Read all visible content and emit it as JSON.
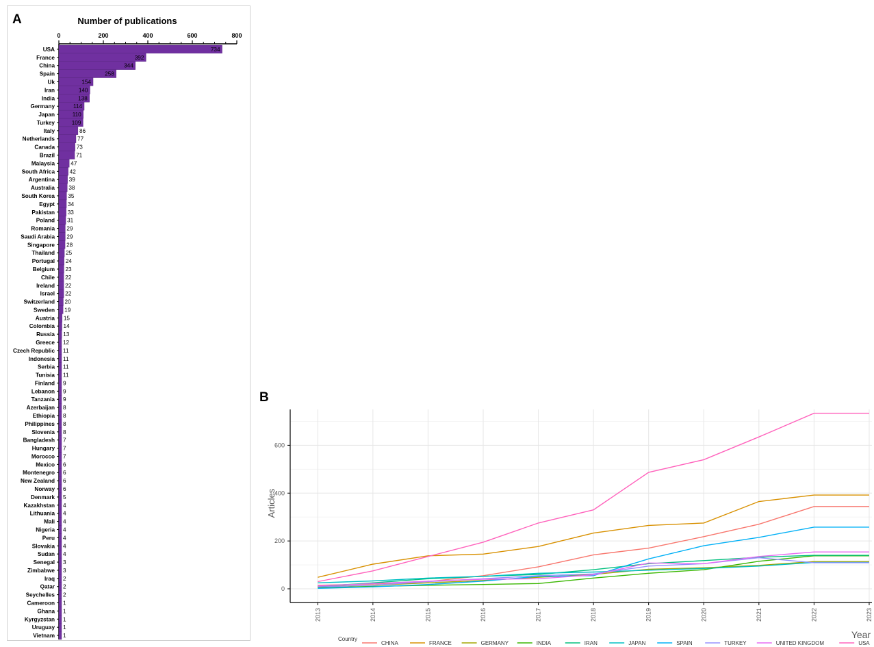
{
  "panels": {
    "a_label": "A",
    "b_label": "B"
  },
  "chart_data": [
    {
      "type": "bar",
      "orientation": "horizontal",
      "title": "Number of publications",
      "xlim": [
        0,
        800
      ],
      "xticks": [
        0,
        200,
        400,
        600,
        800
      ],
      "bar_color": "#7030a0",
      "categories": [
        "USA",
        "France",
        "China",
        "Spain",
        "Uk",
        "Iran",
        "India",
        "Germany",
        "Japan",
        "Turkey",
        "Italy",
        "Netherlands",
        "Canada",
        "Brazil",
        "Malaysia",
        "South Africa",
        "Argentina",
        "Australia",
        "South Korea",
        "Egypt",
        "Pakistan",
        "Poland",
        "Romania",
        "Saudi Arabia",
        "Singapore",
        "Thailand",
        "Portugal",
        "Belgium",
        "Chile",
        "Ireland",
        "Israel",
        "Switzerland",
        "Sweden",
        "Austria",
        "Colombia",
        "Russia",
        "Greece",
        "Czech Republic",
        "Indonesia",
        "Serbia",
        "Tunisia",
        "Finland",
        "Lebanon",
        "Tanzania",
        "Azerbaijan",
        "Ethiopia",
        "Philippines",
        "Slovenia",
        "Bangladesh",
        "Hungary",
        "Morocco",
        "Mexico",
        "Montenegro",
        "New Zealand",
        "Norway",
        "Denmark",
        "Kazakhstan",
        "Lithuania",
        "Mali",
        "Nigeria",
        "Peru",
        "Slovakia",
        "Sudan",
        "Senegal",
        "Zimbabwe",
        "Iraq",
        "Qatar",
        "Seychelles",
        "Cameroon",
        "Ghana",
        "Kyrgyzstan",
        "Uruguay",
        "Vietnam"
      ],
      "values": [
        734,
        392,
        344,
        258,
        154,
        140,
        138,
        114,
        110,
        109,
        86,
        77,
        73,
        71,
        47,
        42,
        39,
        38,
        35,
        34,
        33,
        31,
        29,
        29,
        28,
        25,
        24,
        23,
        22,
        22,
        22,
        20,
        19,
        15,
        14,
        13,
        12,
        11,
        11,
        11,
        11,
        9,
        9,
        9,
        8,
        8,
        8,
        8,
        7,
        7,
        7,
        6,
        6,
        6,
        6,
        5,
        4,
        4,
        4,
        4,
        4,
        4,
        4,
        3,
        3,
        2,
        2,
        2,
        1,
        1,
        1,
        1,
        1
      ]
    },
    {
      "type": "line",
      "xlabel": "Year",
      "ylabel": "Articles",
      "ylim": [
        0,
        750
      ],
      "yticks": [
        0,
        200,
        400,
        600
      ],
      "x": [
        2013,
        2014,
        2015,
        2016,
        2017,
        2018,
        2019,
        2020,
        2021,
        2022,
        2023
      ],
      "legend_title": "Country",
      "legend_position": "bottom",
      "grid": true,
      "series": [
        {
          "name": "CHINA",
          "color": "#f8766d",
          "values": [
            15,
            20,
            30,
            55,
            92,
            142,
            170,
            218,
            270,
            344,
            344
          ]
        },
        {
          "name": "FRANCE",
          "color": "#d89000",
          "values": [
            48,
            103,
            138,
            145,
            177,
            233,
            265,
            275,
            365,
            392,
            392
          ]
        },
        {
          "name": "GERMANY",
          "color": "#a3a500",
          "values": [
            10,
            15,
            25,
            35,
            48,
            60,
            82,
            88,
            98,
            114,
            114
          ]
        },
        {
          "name": "INDIA",
          "color": "#39b600",
          "values": [
            5,
            10,
            15,
            18,
            22,
            45,
            65,
            80,
            115,
            138,
            138
          ]
        },
        {
          "name": "IRAN",
          "color": "#00bf7d",
          "values": [
            10,
            25,
            42,
            52,
            60,
            80,
            105,
            118,
            132,
            140,
            140
          ]
        },
        {
          "name": "JAPAN",
          "color": "#00bfc4",
          "values": [
            25,
            33,
            45,
            52,
            65,
            70,
            78,
            85,
            95,
            110,
            110
          ]
        },
        {
          "name": "SPAIN",
          "color": "#00b0f6",
          "values": [
            2,
            8,
            18,
            32,
            52,
            55,
            125,
            180,
            215,
            258,
            258
          ]
        },
        {
          "name": "TURKEY",
          "color": "#9590ff",
          "values": [
            8,
            15,
            30,
            42,
            55,
            62,
            95,
            105,
            130,
            109,
            109
          ]
        },
        {
          "name": "UNITED KINGDOM",
          "color": "#e76bf3",
          "values": [
            12,
            22,
            32,
            40,
            42,
            58,
            108,
            105,
            135,
            154,
            154
          ]
        },
        {
          "name": "USA",
          "color": "#ff62bc",
          "values": [
            30,
            75,
            135,
            195,
            275,
            330,
            487,
            540,
            635,
            734,
            734
          ]
        }
      ]
    }
  ]
}
